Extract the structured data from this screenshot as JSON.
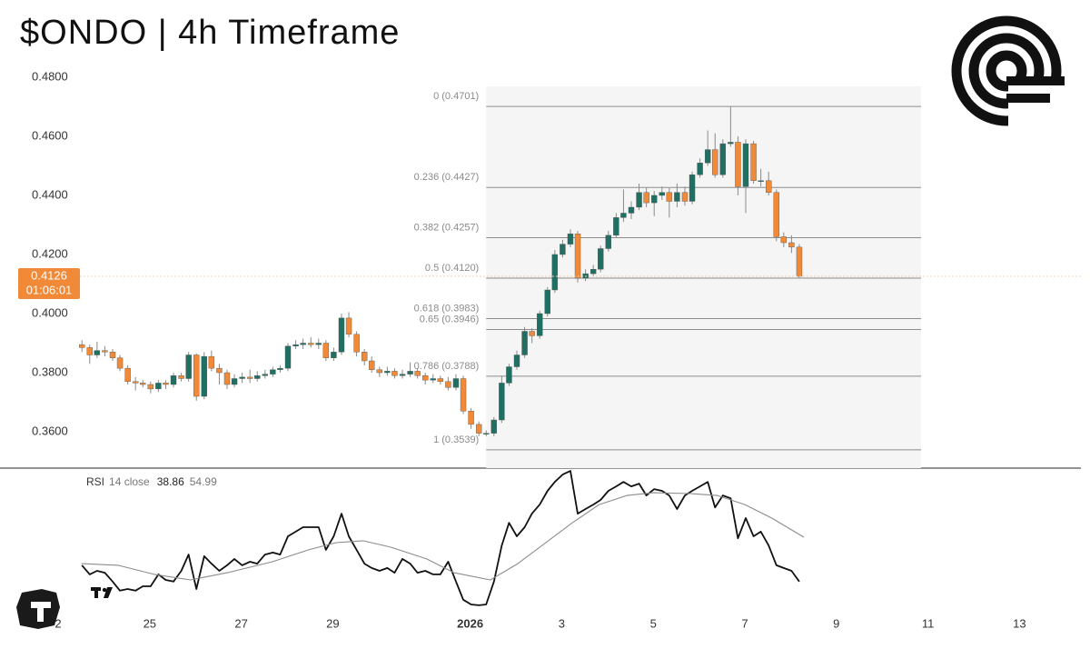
{
  "chart_data": {
    "type": "candlestick",
    "title": "$ONDO | 4h Timeframe",
    "countdown": "01:06:01",
    "up_color": "#1f6f62",
    "down_color": "#f08a38",
    "xlim": [
      21.73,
      45.54
    ],
    "ylim": [
      0.3477,
      0.4846
    ],
    "xticks": [
      {
        "value": 23,
        "label": "2"
      },
      25,
      27,
      29,
      {
        "value": 32,
        "label": "2026",
        "bold": true
      },
      {
        "value": 34,
        "label": "3"
      },
      {
        "value": 36,
        "label": "5"
      },
      {
        "value": 38,
        "label": "7"
      },
      {
        "value": 40,
        "label": "9"
      },
      {
        "value": 42,
        "label": "11"
      },
      {
        "value": 44,
        "label": "13"
      }
    ],
    "yticks": [
      {
        "value": 0.36,
        "label": "0.3600"
      },
      {
        "value": 0.38,
        "label": "0.3800"
      },
      {
        "value": 0.4,
        "label": "0.4000"
      },
      {
        "value": 0.42,
        "label": "0.4200"
      },
      {
        "value": 0.44,
        "label": "0.4400"
      },
      {
        "value": 0.46,
        "label": "0.4600"
      },
      {
        "value": 0.48,
        "label": "0.4800"
      }
    ],
    "x": [
      23.52,
      23.69,
      23.85,
      24.02,
      24.19,
      24.35,
      24.52,
      24.69,
      24.85,
      25.02,
      25.19,
      25.35,
      25.52,
      25.69,
      25.85,
      26.02,
      26.19,
      26.35,
      26.52,
      26.69,
      26.85,
      27.02,
      27.19,
      27.35,
      27.52,
      27.69,
      27.85,
      28.02,
      28.19,
      28.35,
      28.52,
      28.69,
      28.85,
      29.02,
      29.19,
      29.35,
      29.52,
      29.69,
      29.85,
      30.02,
      30.19,
      30.35,
      30.52,
      30.69,
      30.85,
      31.02,
      31.19,
      31.35,
      31.52,
      31.69,
      31.85,
      32.02,
      32.19,
      32.35,
      32.52,
      32.69,
      32.85,
      33.02,
      33.19,
      33.35,
      33.52,
      33.69,
      33.85,
      34.02,
      34.19,
      34.35,
      34.52,
      34.69,
      34.85,
      35.02,
      35.19,
      35.35,
      35.52,
      35.69,
      35.85,
      36.02,
      36.19,
      36.35,
      36.52,
      36.69,
      36.85,
      37.02,
      37.19,
      37.35,
      37.52,
      37.69,
      37.85,
      38.02,
      38.19,
      38.35,
      38.52,
      38.69,
      38.85,
      39.02,
      39.19
    ],
    "open": [
      0.3895,
      0.3885,
      0.386,
      0.3875,
      0.387,
      0.385,
      0.3815,
      0.377,
      0.3765,
      0.376,
      0.3745,
      0.3765,
      0.376,
      0.379,
      0.378,
      0.386,
      0.372,
      0.3855,
      0.3815,
      0.38,
      0.376,
      0.378,
      0.3785,
      0.378,
      0.379,
      0.3795,
      0.381,
      0.3815,
      0.389,
      0.3895,
      0.39,
      0.3895,
      0.39,
      0.385,
      0.387,
      0.3985,
      0.393,
      0.387,
      0.384,
      0.381,
      0.38,
      0.3805,
      0.379,
      0.3795,
      0.3805,
      0.379,
      0.3775,
      0.378,
      0.377,
      0.375,
      0.378,
      0.367,
      0.3625,
      0.3595,
      0.3595,
      0.364,
      0.3765,
      0.382,
      0.386,
      0.394,
      0.3925,
      0.4,
      0.408,
      0.42,
      0.4235,
      0.427,
      0.412,
      0.4135,
      0.415,
      0.422,
      0.4265,
      0.4325,
      0.434,
      0.436,
      0.441,
      0.4375,
      0.44,
      0.441,
      0.438,
      0.441,
      0.438,
      0.447,
      0.451,
      0.4555,
      0.447,
      0.4575,
      0.458,
      0.443,
      0.4575,
      0.445,
      0.445,
      0.441,
      0.426,
      0.424,
      0.4225
    ],
    "high": [
      0.391,
      0.3895,
      0.3905,
      0.389,
      0.388,
      0.386,
      0.3825,
      0.3785,
      0.3775,
      0.377,
      0.3775,
      0.3775,
      0.38,
      0.38,
      0.387,
      0.3865,
      0.387,
      0.3875,
      0.383,
      0.381,
      0.3795,
      0.38,
      0.381,
      0.3805,
      0.381,
      0.382,
      0.3825,
      0.39,
      0.391,
      0.3915,
      0.392,
      0.3915,
      0.391,
      0.3885,
      0.4,
      0.4005,
      0.394,
      0.388,
      0.3855,
      0.382,
      0.382,
      0.3815,
      0.381,
      0.3835,
      0.3815,
      0.38,
      0.3795,
      0.379,
      0.3785,
      0.3795,
      0.379,
      0.368,
      0.3635,
      0.3605,
      0.365,
      0.379,
      0.383,
      0.3875,
      0.3955,
      0.395,
      0.401,
      0.409,
      0.4215,
      0.425,
      0.4285,
      0.428,
      0.415,
      0.4165,
      0.423,
      0.428,
      0.434,
      0.442,
      0.438,
      0.444,
      0.4425,
      0.4415,
      0.443,
      0.4425,
      0.444,
      0.443,
      0.448,
      0.4525,
      0.462,
      0.461,
      0.459,
      0.4701,
      0.46,
      0.459,
      0.4585,
      0.449,
      0.448,
      0.442,
      0.4275,
      0.4265,
      0.4235
    ],
    "low": [
      0.387,
      0.383,
      0.385,
      0.3855,
      0.384,
      0.3805,
      0.376,
      0.374,
      0.375,
      0.373,
      0.3735,
      0.3745,
      0.375,
      0.377,
      0.377,
      0.3705,
      0.371,
      0.3805,
      0.376,
      0.3745,
      0.375,
      0.3765,
      0.3765,
      0.377,
      0.378,
      0.3785,
      0.38,
      0.3805,
      0.388,
      0.388,
      0.3885,
      0.388,
      0.384,
      0.384,
      0.386,
      0.392,
      0.3855,
      0.3825,
      0.38,
      0.3785,
      0.379,
      0.378,
      0.378,
      0.3785,
      0.378,
      0.376,
      0.3765,
      0.376,
      0.374,
      0.374,
      0.366,
      0.361,
      0.3585,
      0.3585,
      0.3585,
      0.363,
      0.3755,
      0.381,
      0.385,
      0.39,
      0.3915,
      0.399,
      0.407,
      0.419,
      0.4225,
      0.4105,
      0.411,
      0.4125,
      0.414,
      0.421,
      0.4255,
      0.431,
      0.432,
      0.435,
      0.436,
      0.433,
      0.4385,
      0.4325,
      0.436,
      0.4365,
      0.437,
      0.446,
      0.45,
      0.446,
      0.446,
      0.4565,
      0.44,
      0.434,
      0.444,
      0.443,
      0.44,
      0.4245,
      0.4225,
      0.4205,
      0.412
    ],
    "close": [
      0.3885,
      0.386,
      0.3875,
      0.387,
      0.385,
      0.3815,
      0.377,
      0.3765,
      0.376,
      0.3745,
      0.3765,
      0.376,
      0.379,
      0.378,
      0.386,
      0.372,
      0.3855,
      0.3815,
      0.38,
      0.376,
      0.378,
      0.3785,
      0.378,
      0.379,
      0.3795,
      0.381,
      0.3815,
      0.389,
      0.3895,
      0.39,
      0.3895,
      0.39,
      0.385,
      0.387,
      0.3985,
      0.393,
      0.387,
      0.384,
      0.381,
      0.38,
      0.3805,
      0.379,
      0.3795,
      0.3805,
      0.379,
      0.3775,
      0.378,
      0.377,
      0.375,
      0.378,
      0.367,
      0.3625,
      0.3595,
      0.3595,
      0.364,
      0.3765,
      0.382,
      0.386,
      0.394,
      0.3925,
      0.4,
      0.408,
      0.42,
      0.4235,
      0.427,
      0.412,
      0.4135,
      0.415,
      0.422,
      0.4265,
      0.4325,
      0.434,
      0.436,
      0.441,
      0.4375,
      0.44,
      0.441,
      0.438,
      0.441,
      0.438,
      0.447,
      0.451,
      0.4555,
      0.447,
      0.4575,
      0.458,
      0.443,
      0.4575,
      0.445,
      0.445,
      0.441,
      0.426,
      0.424,
      0.4225,
      0.4126
    ],
    "fib": {
      "x": [
        32.35,
        41.85
      ],
      "levels": [
        {
          "value": 0.4701,
          "label": "0 (0.4701)"
        },
        {
          "value": 0.4427,
          "label": "0.236 (0.4427)"
        },
        {
          "value": 0.4257,
          "label": "0.382 (0.4257)"
        },
        {
          "value": 0.412,
          "label": "0.5 (0.4120)"
        },
        {
          "value": 0.3983,
          "label": "0.618 (0.3983)"
        },
        {
          "value": 0.3946,
          "label": "0.65 (0.3946)"
        },
        {
          "value": 0.3788,
          "label": "0.786 (0.3788)"
        },
        {
          "value": 0.3539,
          "label": "1 (0.3539)"
        }
      ]
    },
    "rsi": {
      "name": "RSI",
      "params": "14 close",
      "ylim": [
        25,
        82
      ],
      "series": [
        {
          "color": "#111111",
          "values": [
            44.8,
            41.5,
            42.8,
            42.1,
            38.9,
            35.6,
            36.2,
            35.6,
            37.2,
            37.2,
            41.5,
            39.5,
            38.9,
            42.8,
            48.7,
            36.2,
            48.1,
            45.4,
            42.8,
            44.8,
            47.1,
            44.8,
            46.1,
            45.4,
            48.7,
            49.4,
            48.7,
            55.3,
            57.0,
            58.6,
            58.6,
            58.6,
            50.4,
            55.3,
            63.5,
            55.3,
            50.4,
            45.4,
            43.8,
            42.8,
            43.8,
            42.1,
            47.1,
            45.4,
            42.1,
            42.8,
            41.5,
            41.5,
            46.1,
            38.9,
            32.3,
            30.6,
            30.3,
            30.6,
            38.9,
            52.0,
            60.2,
            55.3,
            58.6,
            63.5,
            66.8,
            71.8,
            75.0,
            77.7,
            79.0,
            63.5,
            65.2,
            66.8,
            68.5,
            71.8,
            73.4,
            75.0,
            73.4,
            74.4,
            70.1,
            72.4,
            71.8,
            70.1,
            65.2,
            70.1,
            71.8,
            73.4,
            75.0,
            65.8,
            70.1,
            69.1,
            54.6,
            61.9,
            55.3,
            57.0,
            52.0,
            44.8,
            43.8,
            42.8,
            38.86
          ]
        },
        {
          "color": "#8c8c8c",
          "x": [
            23.51,
            24.31,
            25.1,
            25.89,
            26.69,
            27.68,
            28.47,
            29.07,
            29.66,
            30.26,
            31.05,
            31.65,
            32.44,
            33.04,
            33.63,
            34.23,
            34.82,
            35.42,
            36.01,
            36.81,
            37.4,
            38.0,
            38.59,
            39.29
          ],
          "values": [
            45.4,
            44.8,
            41.5,
            39.5,
            42.1,
            46.1,
            50.4,
            53.0,
            53.7,
            51.4,
            47.1,
            42.1,
            39.5,
            45.4,
            52.7,
            60.2,
            66.8,
            70.1,
            71.1,
            70.8,
            70.1,
            66.8,
            61.9,
            54.99
          ]
        }
      ]
    }
  }
}
